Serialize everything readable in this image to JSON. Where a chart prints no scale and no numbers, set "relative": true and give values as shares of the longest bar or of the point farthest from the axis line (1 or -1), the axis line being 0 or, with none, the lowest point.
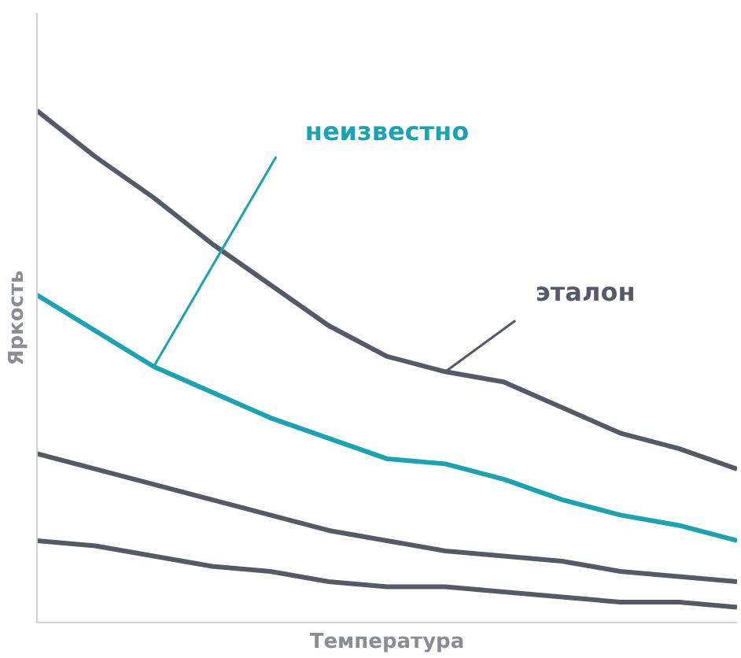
{
  "chart_data": {
    "type": "line",
    "relative": true,
    "xlabel": "Температура",
    "ylabel": "Яркость",
    "marker": "none",
    "line_style": "solid",
    "categories": [
      null,
      null,
      null,
      null,
      null,
      null,
      null,
      null,
      null,
      null,
      null,
      null,
      null
    ],
    "series": [
      {
        "name": "эталон",
        "color": "#555b66",
        "values": [
          1,
          0.91,
          0.83,
          0.74,
          0.66,
          0.58,
          0.52,
          0.49,
          0.47,
          0.42,
          0.37,
          0.34,
          0.3
        ]
      },
      {
        "name": "неизвестно",
        "color": "#1aa3b0",
        "values": [
          0.64,
          0.57,
          0.5,
          0.45,
          0.4,
          0.36,
          0.32,
          0.31,
          0.28,
          0.24,
          0.21,
          0.19,
          0.16
        ]
      },
      {
        "color": "#555b66",
        "values": [
          0.33,
          0.3,
          0.27,
          0.24,
          0.21,
          0.18,
          0.16,
          0.14,
          0.13,
          0.12,
          0.1,
          0.09,
          0.08
        ]
      },
      {
        "color": "#555b66",
        "values": [
          0.16,
          0.15,
          0.13,
          0.11,
          0.1,
          0.08,
          0.07,
          0.07,
          0.06,
          0.05,
          0.04,
          0.04,
          0.03
        ]
      }
    ]
  }
}
